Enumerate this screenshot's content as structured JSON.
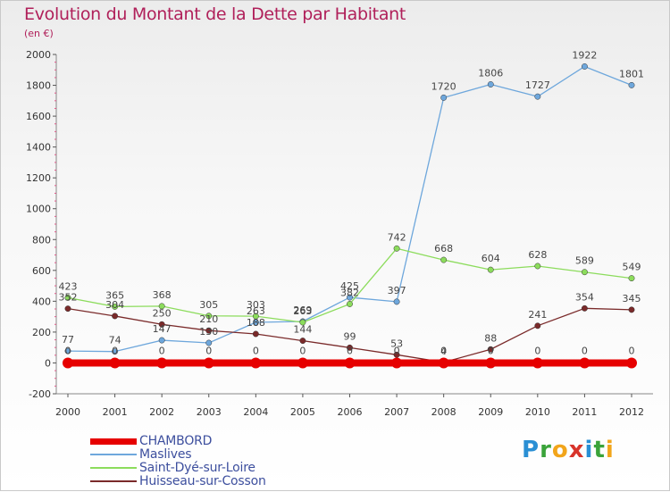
{
  "header": {
    "title": "Evolution du Montant de la Dette par Habitant",
    "subtitle": "(en €)"
  },
  "logo": {
    "text": "Proxiti"
  },
  "chart_data": {
    "type": "line",
    "title": "Evolution du Montant de la Dette par Habitant",
    "subtitle": "(en €)",
    "xlabel": "",
    "ylabel": "",
    "x": [
      2000,
      2001,
      2002,
      2003,
      2004,
      2005,
      2006,
      2007,
      2008,
      2009,
      2010,
      2011,
      2012
    ],
    "ylim": [
      -200,
      2000
    ],
    "yticks": [
      -200,
      0,
      200,
      400,
      600,
      800,
      1000,
      1200,
      1400,
      1600,
      1800,
      2000
    ],
    "grid": false,
    "legend": "bottom-left",
    "series": [
      {
        "name": "CHAMBORD",
        "color": "#e60000",
        "values": [
          0,
          0,
          0,
          0,
          0,
          0,
          0,
          0,
          0,
          0,
          0,
          0,
          0
        ]
      },
      {
        "name": "Maslives",
        "color": "#6ea7dc",
        "values": [
          77,
          74,
          147,
          130,
          263,
          269,
          425,
          397,
          1720,
          1806,
          1727,
          1922,
          1801
        ]
      },
      {
        "name": "Saint-Dyé-sur-Loire",
        "color": "#8cdc5c",
        "values": [
          423,
          365,
          368,
          305,
          303,
          263,
          382,
          742,
          668,
          604,
          628,
          589,
          549
        ]
      },
      {
        "name": "Huisseau-sur-Cosson",
        "color": "#7a2a2a",
        "values": [
          352,
          304,
          250,
          210,
          188,
          144,
          99,
          53,
          4,
          88,
          241,
          354,
          345
        ]
      }
    ]
  }
}
